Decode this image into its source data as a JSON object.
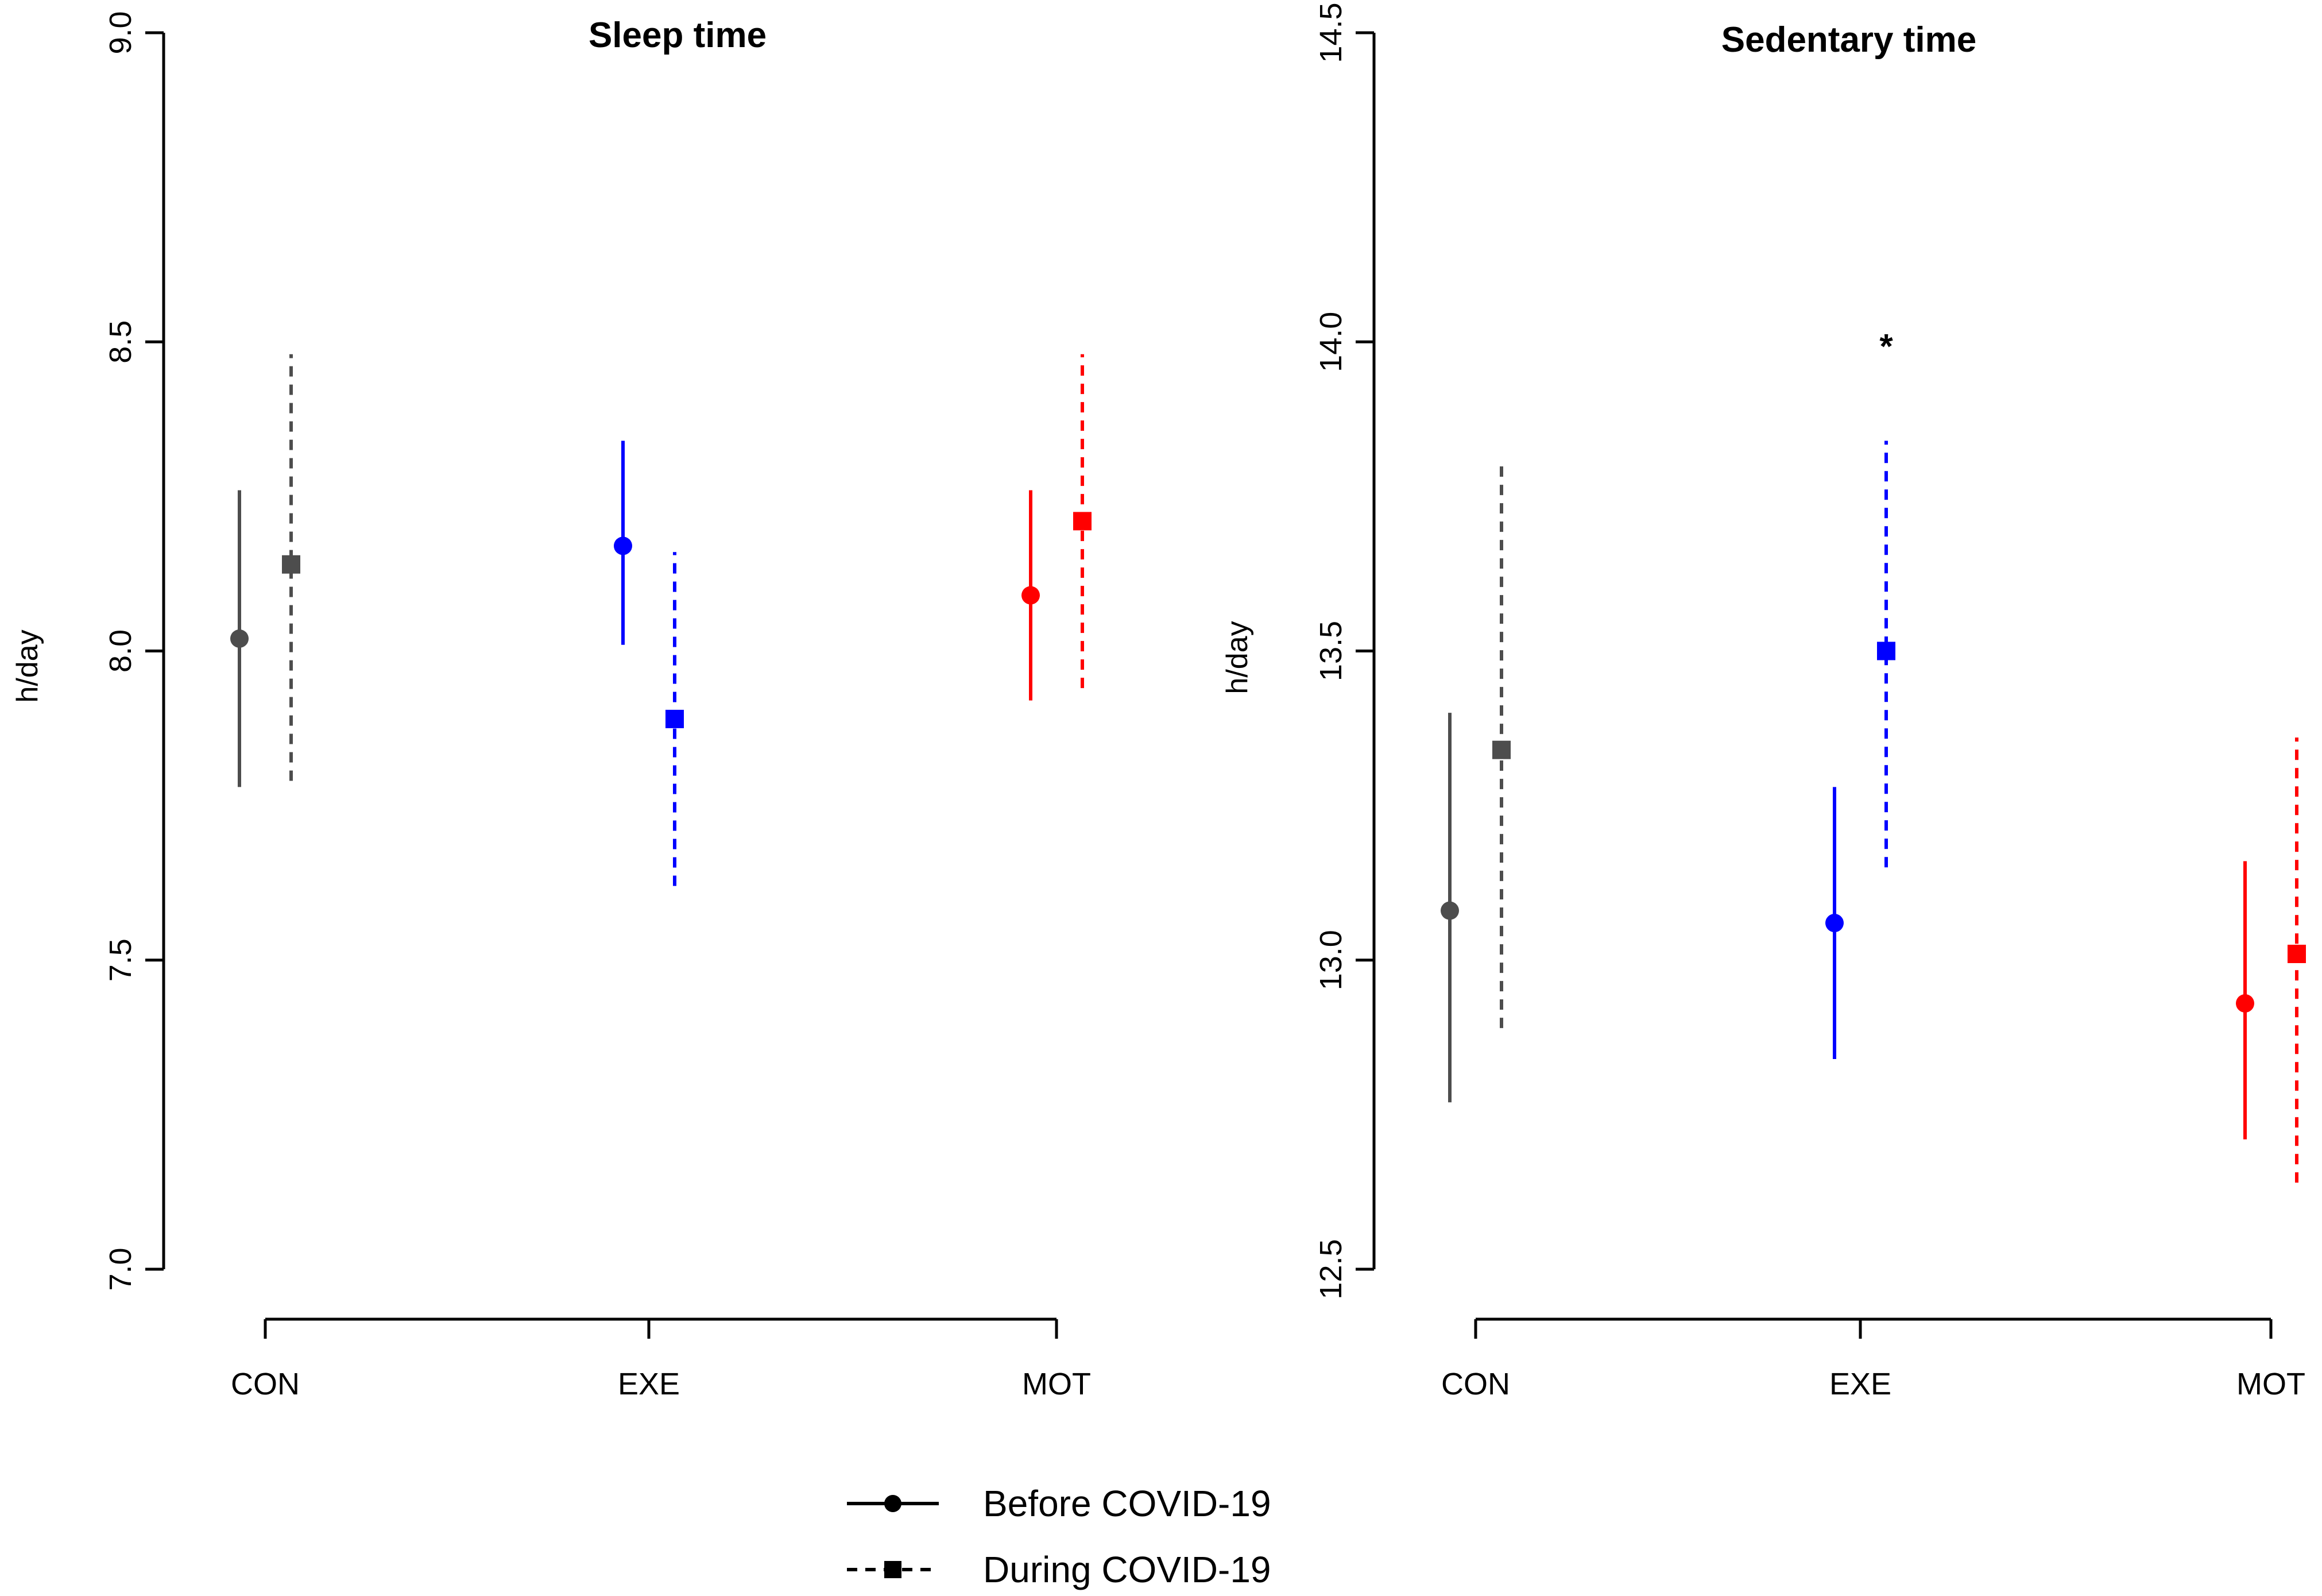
{
  "colors": {
    "CON": "#4d4d4d",
    "EXE": "#0000ff",
    "MOT": "#ff0000",
    "axis": "#000000"
  },
  "legend": {
    "before_label": "Before COVID-19",
    "during_label": "During COVID-19"
  },
  "chart_data": [
    {
      "type": "errorbar",
      "title": "Sleep time",
      "ylabel": "h/day",
      "ylim": [
        7.0,
        9.0
      ],
      "yticks": [
        "7.0",
        "7.5",
        "8.0",
        "8.5",
        "9.0"
      ],
      "categories": [
        "CON",
        "EXE",
        "MOT"
      ],
      "series": [
        {
          "name": "Before COVID-19",
          "marker": "circle",
          "line": "solid",
          "values": [
            8.02,
            8.17,
            8.09
          ],
          "lower": [
            7.78,
            8.01,
            7.92
          ],
          "upper": [
            8.26,
            8.34,
            8.26
          ]
        },
        {
          "name": "During COVID-19",
          "marker": "square",
          "line": "dashed",
          "values": [
            8.14,
            7.89,
            8.21
          ],
          "lower": [
            7.79,
            7.62,
            7.94
          ],
          "upper": [
            8.48,
            8.16,
            8.48
          ]
        }
      ],
      "annotations": []
    },
    {
      "type": "errorbar",
      "title": "Sedentary time",
      "ylabel": "h/day",
      "ylim": [
        12.5,
        14.5
      ],
      "yticks": [
        "12.5",
        "13.0",
        "13.5",
        "14.0",
        "14.5"
      ],
      "categories": [
        "CON",
        "EXE",
        "MOT"
      ],
      "series": [
        {
          "name": "Before COVID-19",
          "marker": "circle",
          "line": "solid",
          "values": [
            13.08,
            13.06,
            12.93
          ],
          "lower": [
            12.77,
            12.84,
            12.71
          ],
          "upper": [
            13.4,
            13.28,
            13.16
          ]
        },
        {
          "name": "During COVID-19",
          "marker": "square",
          "line": "dashed",
          "values": [
            13.34,
            13.5,
            13.01
          ],
          "lower": [
            12.89,
            13.15,
            12.64
          ],
          "upper": [
            13.8,
            13.84,
            13.36
          ]
        }
      ],
      "annotations": [
        {
          "text": "*",
          "category": "EXE",
          "series": "During COVID-19",
          "y": 14.0
        }
      ]
    }
  ]
}
